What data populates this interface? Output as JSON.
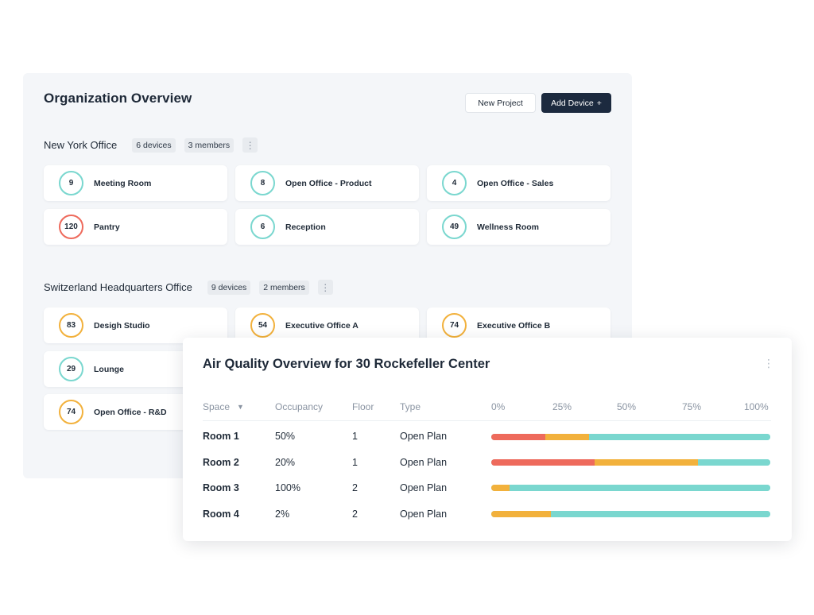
{
  "org": {
    "title": "Organization Overview",
    "new_project_label": "New Project",
    "add_device_label": "Add Device",
    "add_device_icon": "+",
    "offices": [
      {
        "name": "New York Office",
        "devices": "6 devices",
        "members": "3 members",
        "rooms": [
          {
            "value": "9",
            "name": "Meeting Room",
            "status": "teal"
          },
          {
            "value": "8",
            "name": "Open Office - Product",
            "status": "teal"
          },
          {
            "value": "4",
            "name": "Open Office - Sales",
            "status": "teal"
          },
          {
            "value": "120",
            "name": "Pantry",
            "status": "red"
          },
          {
            "value": "6",
            "name": "Reception",
            "status": "teal"
          },
          {
            "value": "49",
            "name": "Wellness Room",
            "status": "teal"
          }
        ]
      },
      {
        "name": "Switzerland Headquarters Office",
        "devices": "9 devices",
        "members": "2 members",
        "rooms": [
          {
            "value": "83",
            "name": "Desigh Studio",
            "status": "orange"
          },
          {
            "value": "54",
            "name": "Executive Office A",
            "status": "orange"
          },
          {
            "value": "74",
            "name": "Executive Office B",
            "status": "orange"
          },
          {
            "value": "29",
            "name": "Lounge",
            "status": "teal"
          },
          {
            "value": "74",
            "name": "Open Office - R&D",
            "status": "orange"
          }
        ]
      }
    ]
  },
  "air_quality": {
    "title": "Air Quality Overview for 30 Rockefeller Center",
    "columns": {
      "space": "Space",
      "occupancy": "Occupancy",
      "floor": "Floor",
      "type": "Type"
    },
    "scale": [
      "0%",
      "25%",
      "50%",
      "75%",
      "100%"
    ],
    "rows": [
      {
        "space": "Room 1",
        "occupancy": "50%",
        "floor": "1",
        "type": "Open Plan",
        "bar_pct": {
          "red": 19.5,
          "orange": 15.5,
          "teal": 65
        }
      },
      {
        "space": "Room 2",
        "occupancy": "20%",
        "floor": "1",
        "type": "Open Plan",
        "bar_pct": {
          "red": 37,
          "orange": 37,
          "teal": 26
        }
      },
      {
        "space": "Room 3",
        "occupancy": "100%",
        "floor": "2",
        "type": "Open Plan",
        "bar_pct": {
          "red": 0,
          "orange": 6.5,
          "teal": 93.5
        }
      },
      {
        "space": "Room 4",
        "occupancy": "2%",
        "floor": "2",
        "type": "Open Plan",
        "bar_pct": {
          "red": 0,
          "orange": 21.5,
          "teal": 78.5
        }
      }
    ]
  },
  "colors": {
    "teal": "#7ad7cf",
    "red": "#ee6a5c",
    "orange": "#f2b13c",
    "navy": "#1c2a3f"
  },
  "icons": {
    "kebab": "more-vertical-icon",
    "sort": "caret-down-icon",
    "plus": "plus-icon"
  }
}
